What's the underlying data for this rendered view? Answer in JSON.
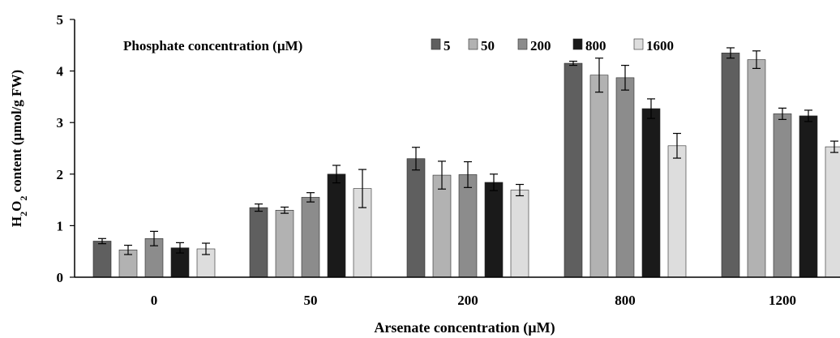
{
  "chart_data": {
    "type": "bar",
    "xlabel": "Arsenate concentration (µM)",
    "ylabel_parts": [
      "H",
      "2",
      "O",
      "2",
      " content (µmol/g FW)"
    ],
    "ylim": [
      0,
      5
    ],
    "yticks": [
      "0",
      "1",
      "2",
      "3",
      "4",
      "5"
    ],
    "categories": [
      "0",
      "50",
      "200",
      "800",
      "1200"
    ],
    "legend_title": "Phosphate concentration (µM)",
    "legend_position": "top",
    "grid": false,
    "series": [
      {
        "name": "5",
        "color": "#5f5f5f",
        "values": [
          0.7,
          1.35,
          2.3,
          4.15,
          4.35
        ],
        "errors": [
          0.05,
          0.07,
          0.22,
          0.04,
          0.1
        ]
      },
      {
        "name": "50",
        "color": "#b2b2b2",
        "values": [
          0.53,
          1.3,
          1.98,
          3.92,
          4.22
        ],
        "errors": [
          0.09,
          0.06,
          0.27,
          0.33,
          0.17
        ]
      },
      {
        "name": "200",
        "color": "#8c8c8c",
        "values": [
          0.75,
          1.55,
          1.99,
          3.87,
          3.17
        ],
        "errors": [
          0.14,
          0.09,
          0.25,
          0.24,
          0.11
        ]
      },
      {
        "name": "800",
        "color": "#1a1a1a",
        "values": [
          0.57,
          2.0,
          1.84,
          3.27,
          3.13
        ],
        "errors": [
          0.1,
          0.17,
          0.16,
          0.19,
          0.11
        ]
      },
      {
        "name": "1600",
        "color": "#dddddd",
        "values": [
          0.55,
          1.72,
          1.69,
          2.55,
          2.53
        ],
        "errors": [
          0.11,
          0.37,
          0.11,
          0.24,
          0.11
        ]
      }
    ]
  }
}
